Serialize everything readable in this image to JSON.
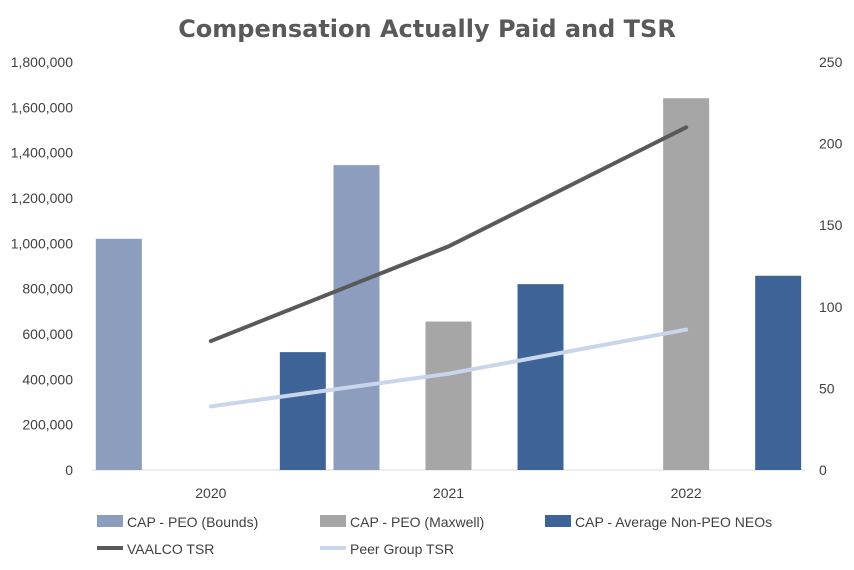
{
  "chart_data": {
    "type": "bar",
    "title": "Compensation Actually Paid and TSR",
    "categories": [
      "2020",
      "2021",
      "2022"
    ],
    "series": [
      {
        "name": "CAP - PEO (Bounds)",
        "type": "bar",
        "axis": "left",
        "color": "#8c9dbd",
        "values": [
          1020000,
          1345000,
          null
        ]
      },
      {
        "name": "CAP - PEO (Maxwell)",
        "type": "bar",
        "axis": "left",
        "color": "#a6a6a6",
        "values": [
          null,
          655000,
          1640000
        ]
      },
      {
        "name": "CAP - Average Non-PEO NEOs",
        "type": "bar",
        "axis": "left",
        "color": "#3e6497",
        "values": [
          520000,
          820000,
          857000
        ]
      },
      {
        "name": "VAALCO TSR",
        "type": "line",
        "axis": "right",
        "color": "#595959",
        "values": [
          79,
          137,
          210
        ]
      },
      {
        "name": "Peer Group TSR",
        "type": "line",
        "axis": "right",
        "color": "#c9d5ea",
        "values": [
          39,
          59,
          86
        ]
      }
    ],
    "y_left": {
      "ylim": [
        0,
        1800000
      ],
      "ticks": [
        "0",
        "200,000",
        "400,000",
        "600,000",
        "800,000",
        "1,000,000",
        "1,200,000",
        "1,400,000",
        "1,600,000",
        "1,800,000"
      ]
    },
    "y_right": {
      "ylim": [
        0,
        250
      ],
      "ticks": [
        "0",
        "50",
        "100",
        "150",
        "200",
        "250"
      ]
    },
    "grid": false,
    "legend": "bottom"
  }
}
